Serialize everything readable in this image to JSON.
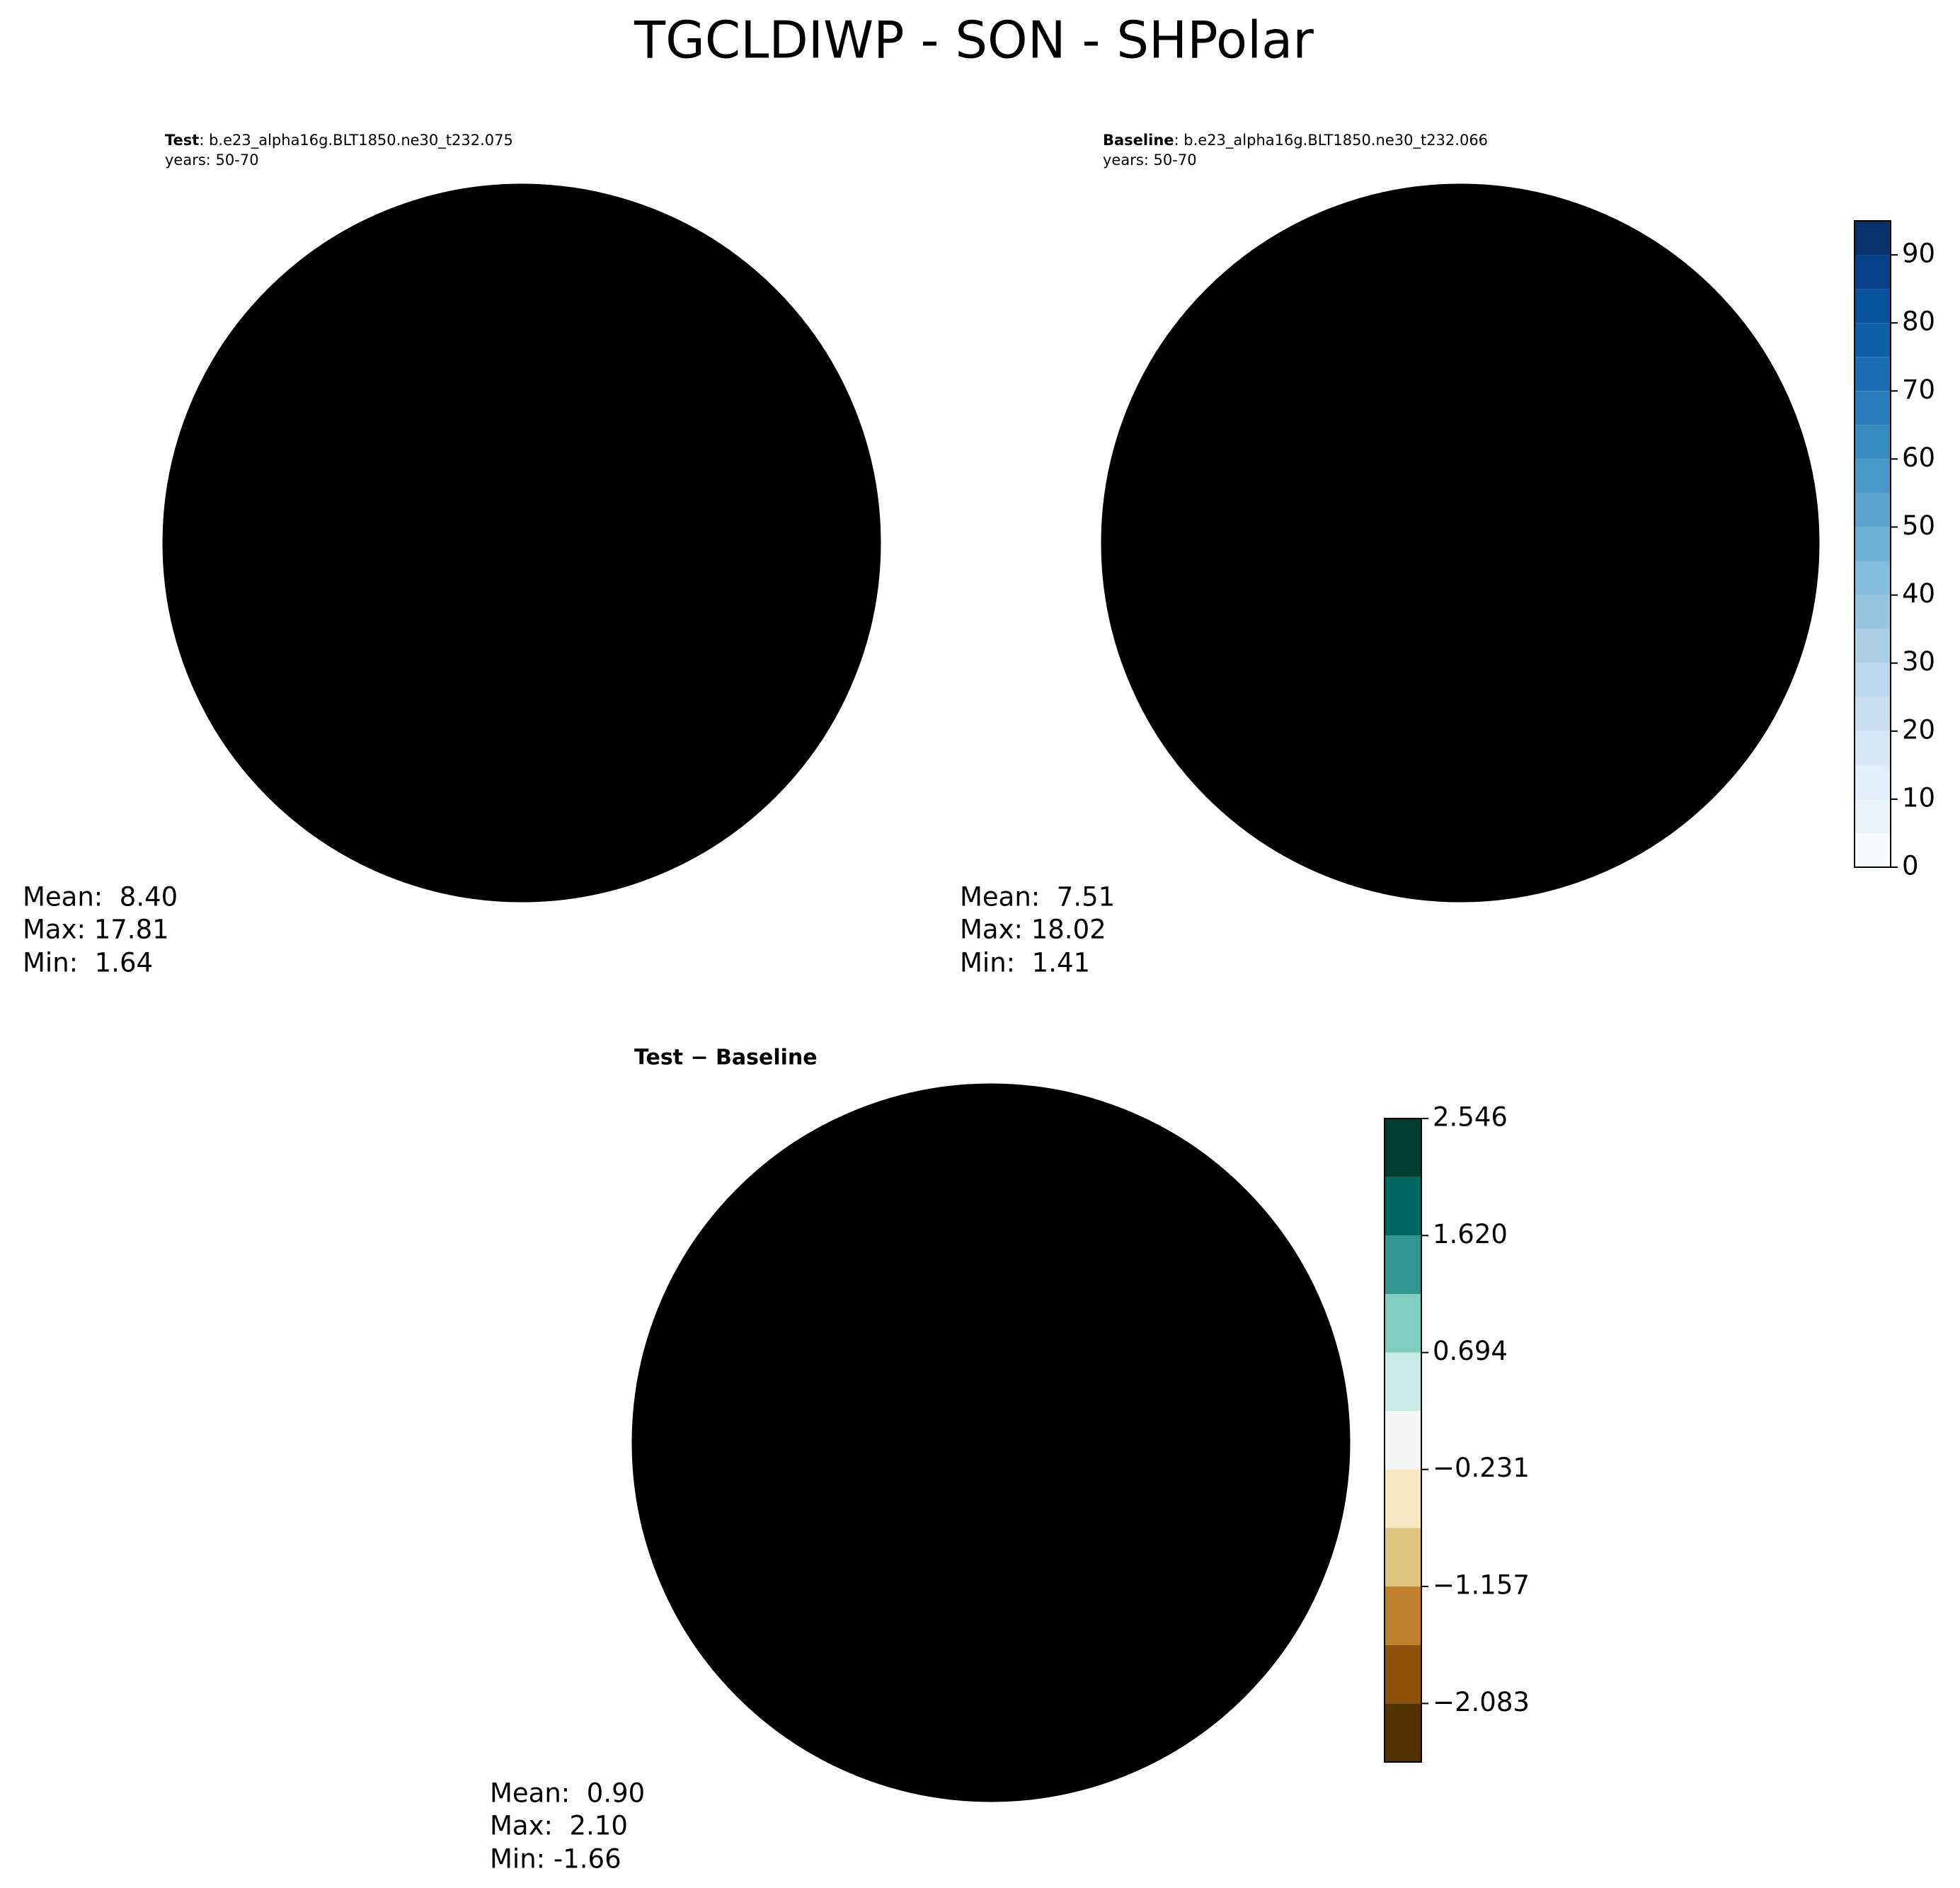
{
  "title": "TGCLDIWP - SON - SHPolar",
  "panels": [
    {
      "label": "Test",
      "case": ": b.e23_alpha16g.BLT1850.ne30_t232.075",
      "years": "years: 50-70",
      "stats": [
        "Mean:  8.40",
        "Max: 17.81",
        "Min:  1.64"
      ]
    },
    {
      "label": "Baseline",
      "case": ": b.e23_alpha16g.BLT1850.ne30_t232.066",
      "years": "years: 50-70",
      "stats": [
        "Mean:  7.51",
        "Max: 18.02",
        "Min:  1.41"
      ]
    },
    {
      "label": "Test − Baseline",
      "stats": [
        "Mean:  0.90",
        "Max:  2.10",
        "Min: -1.66"
      ]
    }
  ],
  "colorbars": [
    {
      "ylim": [
        0,
        95
      ],
      "levels": [
        0,
        5,
        10,
        15,
        20,
        25,
        30,
        35,
        40,
        45,
        50,
        55,
        60,
        65,
        70,
        75,
        80,
        85,
        90,
        95
      ],
      "colors": [
        "#f7fbff",
        "#ebf3fb",
        "#e1edf8",
        "#d6e6f4",
        "#cadef0",
        "#bcd7eb",
        "#abd0e6",
        "#98c6e0",
        "#84bcdb",
        "#6fb0d7",
        "#5ca4d0",
        "#4a98c9",
        "#3a8ac2",
        "#2b7bba",
        "#1d6cb1",
        "#1060a8",
        "#08519c",
        "#08418a",
        "#08306b"
      ],
      "yticks": [
        0,
        10,
        20,
        30,
        40,
        50,
        60,
        70,
        80,
        90
      ]
    },
    {
      "ylim": [
        -2.546,
        2.546
      ],
      "levels": [
        -2.546,
        -2.083,
        -1.62,
        -1.157,
        -0.694,
        -0.231,
        0.231,
        0.694,
        1.157,
        1.62,
        2.083,
        2.546
      ],
      "colors": [
        "#543005",
        "#8c510a",
        "#bf812d",
        "#dfc27d",
        "#f6e8c3",
        "#f5f5f5",
        "#c7eae5",
        "#80cdc1",
        "#35978f",
        "#01665e",
        "#003c30"
      ],
      "yticks": [
        {
          "value": -2.083,
          "label": "−2.083"
        },
        {
          "value": -1.157,
          "label": "−1.157"
        },
        {
          "value": -0.231,
          "label": "−0.231"
        },
        0.694,
        {
          "value": 1.62,
          "label": "1.620"
        },
        2.546
      ]
    }
  ]
}
